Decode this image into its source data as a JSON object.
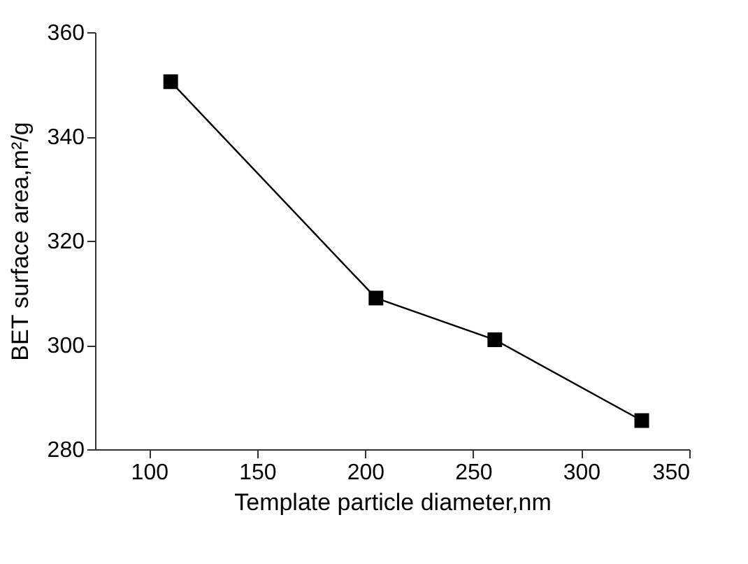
{
  "chart_data": {
    "type": "line",
    "xlabel": "Template particle diameter,nm",
    "ylabel": "BET surface area,m²/g",
    "x": [
      110,
      205,
      260,
      328
    ],
    "series": [
      {
        "color": "#000000",
        "values": [
          350.5,
          309,
          301,
          285.5
        ]
      }
    ],
    "xlim": [
      75,
      350
    ],
    "xticks": [
      100,
      150,
      200,
      250,
      300,
      350
    ],
    "ylim": [
      280,
      360
    ],
    "yticks": [
      280,
      300,
      320,
      340,
      360
    ],
    "marker": "square",
    "line_style": "solid",
    "grid": false
  }
}
